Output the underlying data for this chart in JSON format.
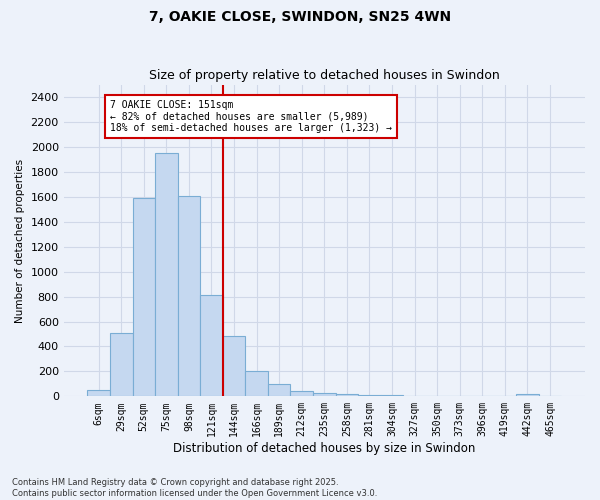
{
  "title": "7, OAKIE CLOSE, SWINDON, SN25 4WN",
  "subtitle": "Size of property relative to detached houses in Swindon",
  "xlabel": "Distribution of detached houses by size in Swindon",
  "ylabel": "Number of detached properties",
  "bar_color": "#c5d8f0",
  "bar_edge_color": "#7aadd4",
  "annotation_line1": "7 OAKIE CLOSE: 151sqm",
  "annotation_line2": "← 82% of detached houses are smaller (5,989)",
  "annotation_line3": "18% of semi-detached houses are larger (1,323) →",
  "vline_color": "#cc0000",
  "footer": "Contains HM Land Registry data © Crown copyright and database right 2025.\nContains public sector information licensed under the Open Government Licence v3.0.",
  "categories": [
    "6sqm",
    "29sqm",
    "52sqm",
    "75sqm",
    "98sqm",
    "121sqm",
    "144sqm",
    "166sqm",
    "189sqm",
    "212sqm",
    "235sqm",
    "258sqm",
    "281sqm",
    "304sqm",
    "327sqm",
    "350sqm",
    "373sqm",
    "396sqm",
    "419sqm",
    "442sqm",
    "465sqm"
  ],
  "values": [
    50,
    510,
    1590,
    1950,
    1610,
    810,
    480,
    200,
    95,
    40,
    30,
    15,
    10,
    10,
    5,
    5,
    5,
    0,
    0,
    20,
    0
  ],
  "ylim": [
    0,
    2500
  ],
  "yticks": [
    0,
    200,
    400,
    600,
    800,
    1000,
    1200,
    1400,
    1600,
    1800,
    2000,
    2200,
    2400
  ],
  "bg_color": "#edf2fa",
  "grid_color": "#d0d8e8",
  "vline_x_index": 5.5,
  "annotation_box_color": "#ffffff",
  "annotation_box_edge": "#cc0000"
}
